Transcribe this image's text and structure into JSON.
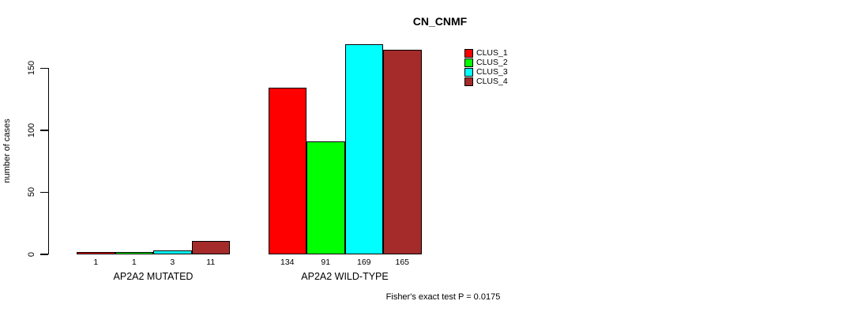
{
  "title": "CN_CNMF",
  "ylabel": "number of cases",
  "footnote": "Fisher's exact test P = 0.0175",
  "colors": {
    "clus1": "#ff0000",
    "clus2": "#00ff00",
    "clus3": "#00ffff",
    "clus4": "#a52a2a",
    "axis": "#000000"
  },
  "legend": {
    "items": [
      {
        "label": "CLUS_1",
        "color": "#ff0000"
      },
      {
        "label": "CLUS_2",
        "color": "#00ff00"
      },
      {
        "label": "CLUS_3",
        "color": "#00ffff"
      },
      {
        "label": "CLUS_4",
        "color": "#a52a2a"
      }
    ]
  },
  "chart_data": {
    "type": "bar",
    "title": "CN_CNMF",
    "xlabel": "",
    "ylabel": "number of cases",
    "categories": [
      "AP2A2 MUTATED",
      "AP2A2 WILD-TYPE"
    ],
    "series": [
      {
        "name": "CLUS_1",
        "color": "#ff0000",
        "values": [
          1,
          134
        ]
      },
      {
        "name": "CLUS_2",
        "color": "#00ff00",
        "values": [
          1,
          91
        ]
      },
      {
        "name": "CLUS_3",
        "color": "#00ffff",
        "values": [
          3,
          169
        ]
      },
      {
        "name": "CLUS_4",
        "color": "#a52a2a",
        "values": [
          11,
          165
        ]
      }
    ],
    "yticks": [
      0,
      50,
      100,
      150
    ],
    "ylim": [
      0,
      169
    ],
    "grid": false,
    "show_bar_values": true,
    "legend_position": "top-right",
    "annotation": "Fisher's exact test P = 0.0175"
  }
}
